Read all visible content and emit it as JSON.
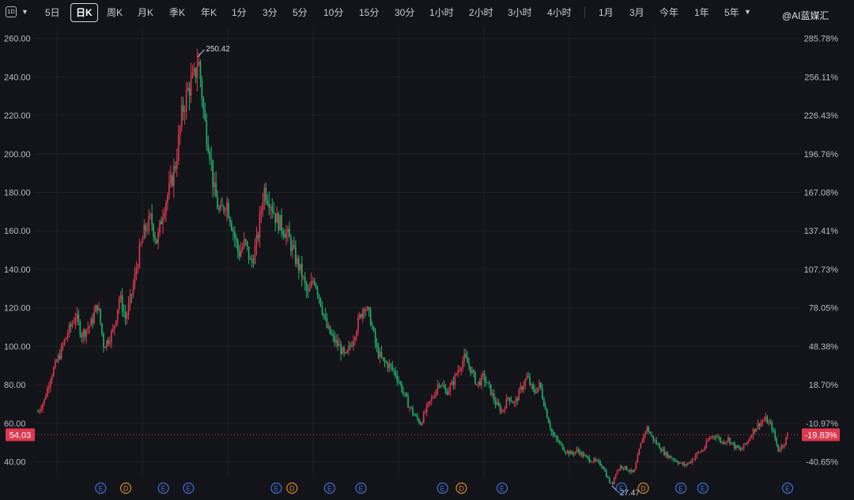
{
  "toolbar": {
    "interval_icon": "1D",
    "items": [
      "5日",
      "日K",
      "周K",
      "月K",
      "季K",
      "年K",
      "1分",
      "3分",
      "5分",
      "10分",
      "15分",
      "30分",
      "1小时",
      "2小时",
      "3小时",
      "4小时",
      "1月",
      "3月",
      "今年",
      "1年",
      "5年"
    ],
    "active": "日K"
  },
  "watermark": "@AI蓝媒汇",
  "colors": {
    "up": "#e0384e",
    "down": "#1fb46a",
    "background": "#131419",
    "current_price_tag": "#e0384e"
  },
  "chart_data": {
    "type": "candlestick",
    "title": "",
    "y_left_ticks": [
      "260.00",
      "240.00",
      "220.00",
      "200.00",
      "180.00",
      "160.00",
      "140.00",
      "120.00",
      "100.00",
      "80.00",
      "60.00",
      "40.00"
    ],
    "y_right_ticks": [
      "285.78%",
      "256.11%",
      "226.43%",
      "196.76%",
      "167.08%",
      "137.41%",
      "107.73%",
      "78.05%",
      "48.38%",
      "18.70%",
      "-10.97%",
      "-40.65%"
    ],
    "ylim": [
      32,
      266
    ],
    "grid": true,
    "max_label": "250.42",
    "min_label": "27.47",
    "current_price": "54.03",
    "current_change": "-19.83%",
    "price_path": [
      [
        0,
        66
      ],
      [
        2,
        72
      ],
      [
        4,
        84
      ],
      [
        7,
        96
      ],
      [
        9,
        105
      ],
      [
        12,
        116
      ],
      [
        14,
        106
      ],
      [
        17,
        112
      ],
      [
        19,
        122
      ],
      [
        21,
        100
      ],
      [
        24,
        108
      ],
      [
        26,
        126
      ],
      [
        28,
        114
      ],
      [
        30,
        128
      ],
      [
        32,
        146
      ],
      [
        34,
        160
      ],
      [
        36,
        166
      ],
      [
        38,
        154
      ],
      [
        40,
        172
      ],
      [
        42,
        182
      ],
      [
        44,
        196
      ],
      [
        46,
        222
      ],
      [
        48,
        234
      ],
      [
        50,
        240
      ],
      [
        51,
        250.42
      ],
      [
        52,
        236
      ],
      [
        53,
        218
      ],
      [
        55,
        200
      ],
      [
        56,
        182
      ],
      [
        58,
        168
      ],
      [
        60,
        176
      ],
      [
        62,
        162
      ],
      [
        64,
        148
      ],
      [
        66,
        154
      ],
      [
        68,
        142
      ],
      [
        70,
        156
      ],
      [
        72,
        182
      ],
      [
        74,
        176
      ],
      [
        76,
        166
      ],
      [
        78,
        162
      ],
      [
        80,
        156
      ],
      [
        82,
        146
      ],
      [
        84,
        138
      ],
      [
        86,
        126
      ],
      [
        88,
        136
      ],
      [
        90,
        124
      ],
      [
        92,
        110
      ],
      [
        94,
        104
      ],
      [
        96,
        100
      ],
      [
        98,
        94
      ],
      [
        100,
        102
      ],
      [
        102,
        112
      ],
      [
        104,
        122
      ],
      [
        106,
        114
      ],
      [
        108,
        98
      ],
      [
        110,
        92
      ],
      [
        112,
        90
      ],
      [
        114,
        86
      ],
      [
        116,
        78
      ],
      [
        118,
        70
      ],
      [
        120,
        64
      ],
      [
        122,
        60
      ],
      [
        124,
        68
      ],
      [
        126,
        74
      ],
      [
        128,
        82
      ],
      [
        130,
        76
      ],
      [
        132,
        80
      ],
      [
        134,
        88
      ],
      [
        136,
        94
      ],
      [
        138,
        88
      ],
      [
        140,
        80
      ],
      [
        142,
        84
      ],
      [
        144,
        78
      ],
      [
        146,
        70
      ],
      [
        148,
        66
      ],
      [
        150,
        74
      ],
      [
        152,
        70
      ],
      [
        154,
        78
      ],
      [
        156,
        84
      ],
      [
        158,
        76
      ],
      [
        160,
        80
      ],
      [
        162,
        66
      ],
      [
        164,
        54
      ],
      [
        166,
        50
      ],
      [
        168,
        46
      ],
      [
        170,
        44
      ],
      [
        172,
        46
      ],
      [
        174,
        43
      ],
      [
        176,
        41
      ],
      [
        178,
        40
      ],
      [
        180,
        38
      ],
      [
        182,
        30
      ],
      [
        183,
        27.47
      ],
      [
        184,
        34
      ],
      [
        186,
        38
      ],
      [
        188,
        36
      ],
      [
        190,
        34
      ],
      [
        192,
        48
      ],
      [
        194,
        58
      ],
      [
        196,
        52
      ],
      [
        198,
        48
      ],
      [
        200,
        44
      ],
      [
        202,
        42
      ],
      [
        204,
        40
      ],
      [
        206,
        38
      ],
      [
        208,
        40
      ],
      [
        210,
        44
      ],
      [
        212,
        46
      ],
      [
        214,
        52
      ],
      [
        216,
        54
      ],
      [
        218,
        50
      ],
      [
        220,
        52
      ],
      [
        222,
        48
      ],
      [
        224,
        46
      ],
      [
        226,
        50
      ],
      [
        228,
        56
      ],
      [
        230,
        60
      ],
      [
        232,
        62
      ],
      [
        234,
        58
      ],
      [
        236,
        46
      ],
      [
        238,
        50
      ],
      [
        239,
        54.03
      ]
    ],
    "event_markers": [
      {
        "x": 20,
        "label": "E"
      },
      {
        "x": 28,
        "label": "D"
      },
      {
        "x": 40,
        "label": "E"
      },
      {
        "x": 48,
        "label": "E"
      },
      {
        "x": 76,
        "label": "E"
      },
      {
        "x": 81,
        "label": "D"
      },
      {
        "x": 93,
        "label": "E"
      },
      {
        "x": 103,
        "label": "E"
      },
      {
        "x": 129,
        "label": "E"
      },
      {
        "x": 135,
        "label": "D"
      },
      {
        "x": 148,
        "label": "E"
      },
      {
        "x": 186,
        "label": "E"
      },
      {
        "x": 193,
        "label": "D"
      },
      {
        "x": 205,
        "label": "E"
      },
      {
        "x": 212,
        "label": "E"
      },
      {
        "x": 239,
        "label": "E"
      }
    ]
  }
}
